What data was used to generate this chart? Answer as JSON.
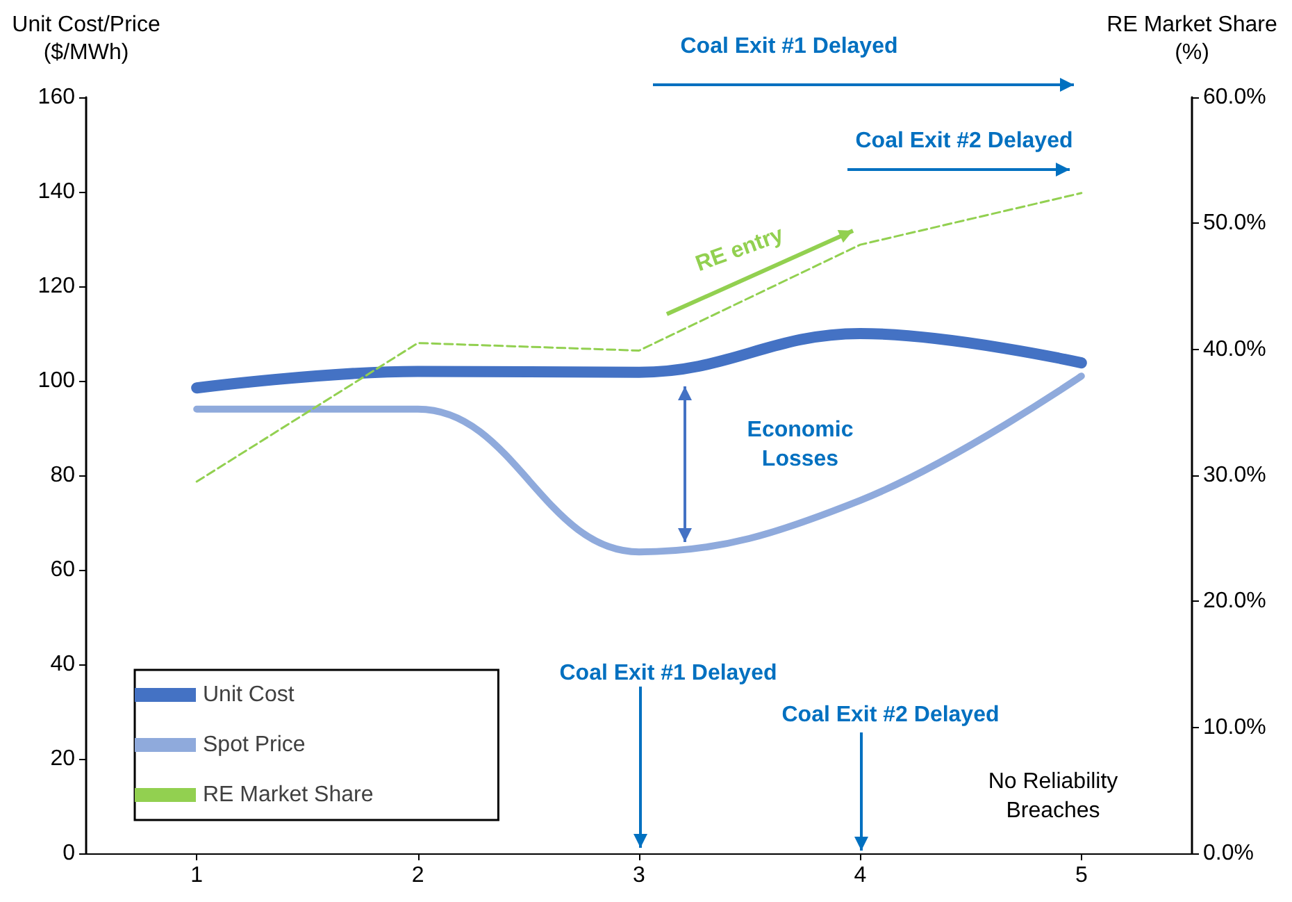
{
  "chart_data": {
    "type": "line",
    "ylabel": "Unit Cost/Price\n($/MWh)",
    "y2label": "RE Market Share\n(%)",
    "x": [
      1,
      2,
      3,
      4,
      5
    ],
    "xlim": [
      0.5,
      5.5
    ],
    "xticks": [
      1,
      2,
      3,
      4,
      5
    ],
    "ylim": [
      0,
      160
    ],
    "yticks": [
      0,
      20,
      40,
      60,
      80,
      100,
      120,
      140,
      160
    ],
    "y2lim": [
      0,
      60
    ],
    "y2ticks": [
      {
        "value": 0,
        "label": "0.0%"
      },
      {
        "value": 10,
        "label": "10.0%"
      },
      {
        "value": 20,
        "label": "20.0%"
      },
      {
        "value": 30,
        "label": "30.0%"
      },
      {
        "value": 40,
        "label": "40.0%"
      },
      {
        "value": 50,
        "label": "50.0%"
      },
      {
        "value": 60,
        "label": "60.0%"
      }
    ],
    "series": [
      {
        "name": "Unit Cost",
        "color": "#4472c4",
        "values": [
          98.5,
          102,
          101.8,
          110,
          103.8
        ]
      },
      {
        "name": "Spot Price",
        "color": "#8faadc",
        "values": [
          94,
          94,
          63.8,
          74.7,
          101
        ]
      },
      {
        "name": "RE Market Share",
        "color": "#92d050",
        "axis": "y2",
        "line_style": "dashed",
        "values": [
          29.5,
          40.5,
          39.9,
          48.3,
          52.4
        ]
      }
    ],
    "annotations": [
      "Coal Exit #1 Delayed",
      "Coal Exit #2 Delayed",
      "RE entry",
      "Economic\nLosses",
      "Coal Exit #1 Delayed",
      "Coal Exit #2 Delayed",
      "No Reliability\nBreaches"
    ],
    "legend": "bottom left",
    "grid": false,
    "marker": "none"
  }
}
